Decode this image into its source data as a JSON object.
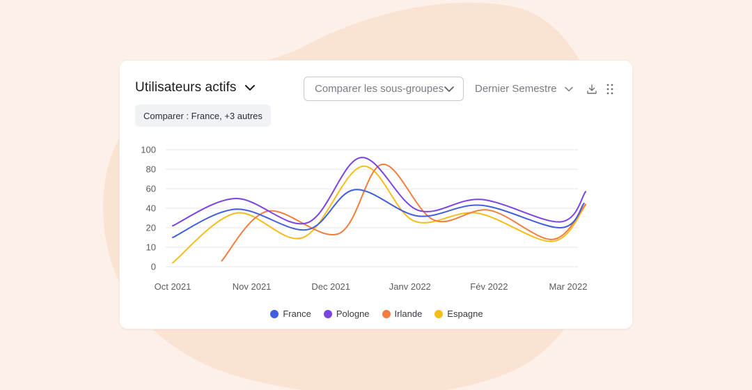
{
  "header": {
    "title": "Utilisateurs actifs",
    "compare_placeholder": "Comparer les sous-groupes",
    "period": "Dernier Semestre",
    "compare_chip": "Comparer : France, +3 autres"
  },
  "icons": {
    "title_dropdown": "chevron-down-icon",
    "compare_dropdown": "chevron-down-icon",
    "period_dropdown": "chevron-down-icon",
    "download": "download-icon",
    "drag": "drag-handle-icon"
  },
  "colors": {
    "background": "#fdf0e9",
    "blob": "#fbe1d2",
    "card": "#ffffff",
    "grid": "#e6e6ea"
  },
  "chart_data": {
    "type": "line",
    "x": [
      "Oct 2021",
      "Nov 2021",
      "Dec 2021",
      "Janv 2022",
      "Fév 2022",
      "Mar 2022"
    ],
    "y_ticks": [
      0,
      10,
      20,
      40,
      60,
      80,
      100
    ],
    "ylim": [
      0,
      100
    ],
    "grid": true,
    "legend_placement": "bottom",
    "series": [
      {
        "name": "France",
        "color": "#3f5fdc",
        "points": [
          [
            0.0,
            15
          ],
          [
            0.8,
            39
          ],
          [
            1.7,
            19
          ],
          [
            2.3,
            59
          ],
          [
            3.1,
            32
          ],
          [
            3.9,
            43
          ],
          [
            4.9,
            20
          ],
          [
            5.2,
            45
          ]
        ]
      },
      {
        "name": "Pologne",
        "color": "#7b43e3",
        "points": [
          [
            0.0,
            22
          ],
          [
            0.8,
            50
          ],
          [
            1.7,
            25
          ],
          [
            2.38,
            92
          ],
          [
            3.1,
            38
          ],
          [
            3.9,
            49
          ],
          [
            4.9,
            26
          ],
          [
            5.22,
            57
          ]
        ]
      },
      {
        "name": "Irlande",
        "color": "#f47c3c",
        "points": [
          [
            0.62,
            3
          ],
          [
            1.2,
            37
          ],
          [
            2.1,
            17
          ],
          [
            2.65,
            85
          ],
          [
            3.3,
            28
          ],
          [
            4.0,
            38
          ],
          [
            4.8,
            14
          ],
          [
            5.22,
            44
          ]
        ]
      },
      {
        "name": "Espagne",
        "color": "#f6bd1a",
        "points": [
          [
            0.0,
            2
          ],
          [
            0.8,
            35
          ],
          [
            1.65,
            15
          ],
          [
            2.4,
            83
          ],
          [
            3.05,
            27
          ],
          [
            3.85,
            35
          ],
          [
            4.8,
            13
          ],
          [
            5.22,
            43
          ]
        ]
      }
    ]
  }
}
